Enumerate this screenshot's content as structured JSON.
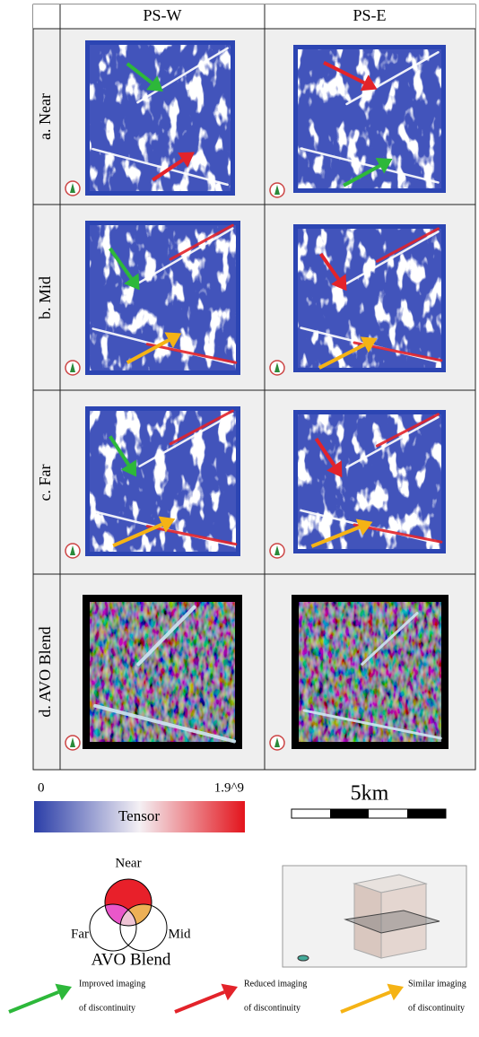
{
  "header": {
    "columns": [
      "PS-W",
      "PS-E"
    ]
  },
  "rows": [
    {
      "label": "a. Near"
    },
    {
      "label": "b. Mid"
    },
    {
      "label": "c. Far"
    },
    {
      "label": "d. AVO Blend"
    }
  ],
  "colorbar": {
    "min": "0",
    "max": "1.9^9",
    "label": "Tensor"
  },
  "scale_bar": {
    "label": "5km"
  },
  "venn": {
    "top": "Near",
    "left": "Far",
    "right": "Mid",
    "title": "AVO Blend"
  },
  "legend": [
    {
      "line1": "Improved imaging",
      "line2": "of discontinuity"
    },
    {
      "line1": "Reduced imaging",
      "line2": "of discontinuity"
    },
    {
      "line1": "Similar imaging",
      "line2": "of discontinuity"
    }
  ]
}
